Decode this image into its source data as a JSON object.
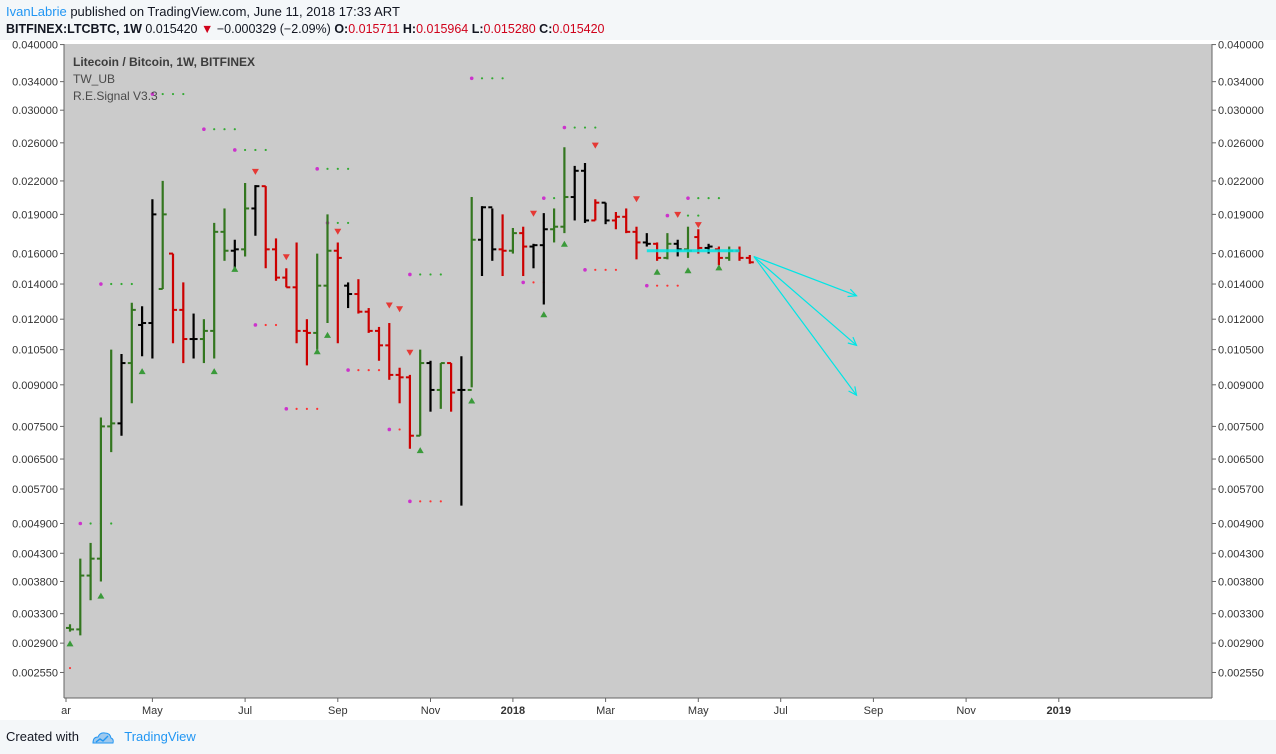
{
  "header": {
    "author": "IvanLabrie",
    "published": " published on TradingView.com, June 11, 2018 17:33 ART",
    "symbol": "BITFINEX:LTCBTC, 1W",
    "last": "0.015420",
    "arrow": "▼",
    "change": "−0.000329 (−2.09%)",
    "o_label": "O:",
    "o": "0.015711",
    "h_label": "H:",
    "h": "0.015964",
    "l_label": "L:",
    "l": "0.015280",
    "c_label": "C:",
    "c": "0.015420"
  },
  "legend": {
    "title": "Litecoin / Bitcoin, 1W, BITFINEX",
    "ind1": "TW_UB",
    "ind2": "R.E.Signal V3.3"
  },
  "footer": {
    "created": "Created with",
    "brand": "TradingView"
  },
  "colors": {
    "up": "#33761f",
    "down": "#cc0000",
    "neutral": "#000000",
    "cyan": "#00e5e5",
    "bg": "#cbcbcb"
  },
  "chart_data": {
    "type": "ohlc",
    "title": "Litecoin / Bitcoin, 1W, BITFINEX",
    "y_scale": "log",
    "ylim": [
      0.00228,
      0.0401
    ],
    "y_ticks": [
      "0.040000",
      "0.034000",
      "0.030000",
      "0.026000",
      "0.022000",
      "0.019000",
      "0.016000",
      "0.014000",
      "0.012000",
      "0.010500",
      "0.009000",
      "0.007500",
      "0.006500",
      "0.005700",
      "0.004900",
      "0.004300",
      "0.003800",
      "0.003300",
      "0.002900",
      "0.002550"
    ],
    "x_ticks": [
      {
        "label": "ar",
        "i": 0
      },
      {
        "label": "May",
        "i": 8
      },
      {
        "label": "Jul",
        "i": 17
      },
      {
        "label": "Sep",
        "i": 26
      },
      {
        "label": "Nov",
        "i": 35
      },
      {
        "label": "2018",
        "i": 43,
        "bold": true
      },
      {
        "label": "Mar",
        "i": 52
      },
      {
        "label": "May",
        "i": 61
      },
      {
        "label": "Jul",
        "i": 69
      },
      {
        "label": "Sep",
        "i": 78
      },
      {
        "label": "Nov",
        "i": 87
      },
      {
        "label": "2019",
        "i": 96,
        "bold": true
      }
    ],
    "bars": [
      {
        "o": 0.0031,
        "h": 0.00315,
        "l": 0.00305,
        "c": 0.00308,
        "k": "u"
      },
      {
        "o": 0.00308,
        "h": 0.0042,
        "l": 0.003,
        "c": 0.0039,
        "k": "u"
      },
      {
        "o": 0.0039,
        "h": 0.0045,
        "l": 0.0035,
        "c": 0.0042,
        "k": "u"
      },
      {
        "o": 0.0042,
        "h": 0.0078,
        "l": 0.0038,
        "c": 0.0075,
        "k": "u"
      },
      {
        "o": 0.0075,
        "h": 0.0105,
        "l": 0.0067,
        "c": 0.0076,
        "k": "u"
      },
      {
        "o": 0.0076,
        "h": 0.0103,
        "l": 0.0072,
        "c": 0.0099,
        "k": "n"
      },
      {
        "o": 0.0099,
        "h": 0.0129,
        "l": 0.0083,
        "c": 0.0125,
        "k": "u"
      },
      {
        "o": 0.0117,
        "h": 0.0127,
        "l": 0.0102,
        "c": 0.0118,
        "k": "n"
      },
      {
        "o": 0.0118,
        "h": 0.0203,
        "l": 0.0101,
        "c": 0.019,
        "k": "n"
      },
      {
        "o": 0.0137,
        "h": 0.022,
        "l": 0.0137,
        "c": 0.019,
        "k": "u"
      },
      {
        "o": 0.016,
        "h": 0.016,
        "l": 0.0108,
        "c": 0.0125,
        "k": "d"
      },
      {
        "o": 0.0125,
        "h": 0.0141,
        "l": 0.0099,
        "c": 0.011,
        "k": "d"
      },
      {
        "o": 0.011,
        "h": 0.0123,
        "l": 0.0101,
        "c": 0.011,
        "k": "n"
      },
      {
        "o": 0.011,
        "h": 0.012,
        "l": 0.0099,
        "c": 0.0114,
        "k": "u"
      },
      {
        "o": 0.0114,
        "h": 0.0183,
        "l": 0.0101,
        "c": 0.0176,
        "k": "u"
      },
      {
        "o": 0.0176,
        "h": 0.0195,
        "l": 0.0155,
        "c": 0.0162,
        "k": "u"
      },
      {
        "o": 0.0162,
        "h": 0.017,
        "l": 0.015,
        "c": 0.0163,
        "k": "n"
      },
      {
        "o": 0.0163,
        "h": 0.0218,
        "l": 0.0158,
        "c": 0.0195,
        "k": "u"
      },
      {
        "o": 0.0195,
        "h": 0.0216,
        "l": 0.0173,
        "c": 0.0215,
        "k": "n"
      },
      {
        "o": 0.0215,
        "h": 0.0215,
        "l": 0.015,
        "c": 0.0163,
        "k": "d"
      },
      {
        "o": 0.0163,
        "h": 0.0171,
        "l": 0.0142,
        "c": 0.0144,
        "k": "d"
      },
      {
        "o": 0.0144,
        "h": 0.015,
        "l": 0.0138,
        "c": 0.0138,
        "k": "d"
      },
      {
        "o": 0.0138,
        "h": 0.0168,
        "l": 0.0108,
        "c": 0.0114,
        "k": "d"
      },
      {
        "o": 0.0114,
        "h": 0.012,
        "l": 0.0098,
        "c": 0.0113,
        "k": "d"
      },
      {
        "o": 0.0113,
        "h": 0.016,
        "l": 0.0105,
        "c": 0.0139,
        "k": "u"
      },
      {
        "o": 0.0139,
        "h": 0.019,
        "l": 0.0118,
        "c": 0.0162,
        "k": "u"
      },
      {
        "o": 0.0162,
        "h": 0.0168,
        "l": 0.0108,
        "c": 0.0157,
        "k": "d"
      },
      {
        "o": 0.0139,
        "h": 0.0141,
        "l": 0.0126,
        "c": 0.0134,
        "k": "n"
      },
      {
        "o": 0.0134,
        "h": 0.0143,
        "l": 0.0123,
        "c": 0.0124,
        "k": "d"
      },
      {
        "o": 0.0124,
        "h": 0.0126,
        "l": 0.0113,
        "c": 0.0114,
        "k": "d"
      },
      {
        "o": 0.0114,
        "h": 0.0116,
        "l": 0.01,
        "c": 0.0107,
        "k": "d"
      },
      {
        "o": 0.0107,
        "h": 0.0118,
        "l": 0.0092,
        "c": 0.0094,
        "k": "d"
      },
      {
        "o": 0.0094,
        "h": 0.0097,
        "l": 0.0083,
        "c": 0.0093,
        "k": "d"
      },
      {
        "o": 0.0093,
        "h": 0.0094,
        "l": 0.0068,
        "c": 0.0072,
        "k": "d"
      },
      {
        "o": 0.0072,
        "h": 0.0105,
        "l": 0.0072,
        "c": 0.0099,
        "k": "u"
      },
      {
        "o": 0.0099,
        "h": 0.01,
        "l": 0.008,
        "c": 0.0088,
        "k": "n"
      },
      {
        "o": 0.0088,
        "h": 0.0099,
        "l": 0.0081,
        "c": 0.0099,
        "k": "u"
      },
      {
        "o": 0.0099,
        "h": 0.0099,
        "l": 0.008,
        "c": 0.0087,
        "k": "d"
      },
      {
        "o": 0.0088,
        "h": 0.0102,
        "l": 0.0053,
        "c": 0.0088,
        "k": "n"
      },
      {
        "o": 0.0088,
        "h": 0.0205,
        "l": 0.0089,
        "c": 0.017,
        "k": "u"
      },
      {
        "o": 0.017,
        "h": 0.0197,
        "l": 0.0145,
        "c": 0.0196,
        "k": "n"
      },
      {
        "o": 0.0196,
        "h": 0.0195,
        "l": 0.0155,
        "c": 0.0163,
        "k": "n"
      },
      {
        "o": 0.0163,
        "h": 0.019,
        "l": 0.0145,
        "c": 0.0162,
        "k": "d"
      },
      {
        "o": 0.0162,
        "h": 0.0179,
        "l": 0.016,
        "c": 0.0175,
        "k": "u"
      },
      {
        "o": 0.0175,
        "h": 0.018,
        "l": 0.0145,
        "c": 0.0165,
        "k": "d"
      },
      {
        "o": 0.0165,
        "h": 0.0167,
        "l": 0.015,
        "c": 0.0166,
        "k": "n"
      },
      {
        "o": 0.0166,
        "h": 0.0191,
        "l": 0.0128,
        "c": 0.0178,
        "k": "n"
      },
      {
        "o": 0.0178,
        "h": 0.0195,
        "l": 0.0168,
        "c": 0.018,
        "k": "u"
      },
      {
        "o": 0.018,
        "h": 0.0255,
        "l": 0.0175,
        "c": 0.0205,
        "k": "u"
      },
      {
        "o": 0.0205,
        "h": 0.0235,
        "l": 0.0185,
        "c": 0.023,
        "k": "n"
      },
      {
        "o": 0.023,
        "h": 0.0238,
        "l": 0.0183,
        "c": 0.0185,
        "k": "n"
      },
      {
        "o": 0.0185,
        "h": 0.0203,
        "l": 0.0185,
        "c": 0.02,
        "k": "d"
      },
      {
        "o": 0.02,
        "h": 0.02,
        "l": 0.0182,
        "c": 0.0185,
        "k": "n"
      },
      {
        "o": 0.0185,
        "h": 0.0192,
        "l": 0.0178,
        "c": 0.0188,
        "k": "d"
      },
      {
        "o": 0.0188,
        "h": 0.0195,
        "l": 0.0175,
        "c": 0.0176,
        "k": "d"
      },
      {
        "o": 0.0176,
        "h": 0.018,
        "l": 0.0156,
        "c": 0.0168,
        "k": "d"
      },
      {
        "o": 0.0168,
        "h": 0.0175,
        "l": 0.0165,
        "c": 0.0167,
        "k": "n"
      },
      {
        "o": 0.0167,
        "h": 0.0168,
        "l": 0.0155,
        "c": 0.0157,
        "k": "d"
      },
      {
        "o": 0.0157,
        "h": 0.0175,
        "l": 0.0156,
        "c": 0.0167,
        "k": "u"
      },
      {
        "o": 0.0167,
        "h": 0.017,
        "l": 0.0158,
        "c": 0.0163,
        "k": "n"
      },
      {
        "o": 0.0163,
        "h": 0.018,
        "l": 0.0157,
        "c": 0.0162,
        "k": "u"
      },
      {
        "o": 0.0172,
        "h": 0.0178,
        "l": 0.016,
        "c": 0.0164,
        "k": "d"
      },
      {
        "o": 0.0164,
        "h": 0.0167,
        "l": 0.016,
        "c": 0.0165,
        "k": "n"
      },
      {
        "o": 0.0163,
        "h": 0.0165,
        "l": 0.0152,
        "c": 0.0157,
        "k": "d"
      },
      {
        "o": 0.0157,
        "h": 0.0165,
        "l": 0.0155,
        "c": 0.0162,
        "k": "u"
      },
      {
        "o": 0.0162,
        "h": 0.0165,
        "l": 0.0155,
        "c": 0.0157,
        "k": "d"
      },
      {
        "o": 0.0157,
        "h": 0.0159,
        "l": 0.0153,
        "c": 0.0154,
        "k": "d"
      }
    ],
    "stops": [
      {
        "i": 0,
        "v": 0.0026,
        "c": "r"
      },
      {
        "i": 1,
        "v": 0.0049,
        "c": "m"
      },
      {
        "i": 2,
        "v": 0.0049,
        "c": "g"
      },
      {
        "i": 3,
        "v": 0.0049,
        "c": "g"
      },
      {
        "i": 4,
        "v": 0.0049,
        "c": "g"
      },
      {
        "i": 3,
        "v": 0.014,
        "c": "m"
      },
      {
        "i": 4,
        "v": 0.014,
        "c": "g"
      },
      {
        "i": 5,
        "v": 0.014,
        "c": "g"
      },
      {
        "i": 6,
        "v": 0.014,
        "c": "g"
      },
      {
        "i": 8,
        "v": 0.0322,
        "c": "m"
      },
      {
        "i": 9,
        "v": 0.0322,
        "c": "g"
      },
      {
        "i": 10,
        "v": 0.0322,
        "c": "g"
      },
      {
        "i": 11,
        "v": 0.0322,
        "c": "g"
      },
      {
        "i": 13,
        "v": 0.0276,
        "c": "m"
      },
      {
        "i": 14,
        "v": 0.0276,
        "c": "g"
      },
      {
        "i": 15,
        "v": 0.0276,
        "c": "g"
      },
      {
        "i": 16,
        "v": 0.0276,
        "c": "g"
      },
      {
        "i": 16,
        "v": 0.0252,
        "c": "m"
      },
      {
        "i": 17,
        "v": 0.0252,
        "c": "g"
      },
      {
        "i": 18,
        "v": 0.0252,
        "c": "g"
      },
      {
        "i": 19,
        "v": 0.0252,
        "c": "g"
      },
      {
        "i": 18,
        "v": 0.0117,
        "c": "m"
      },
      {
        "i": 19,
        "v": 0.0117,
        "c": "r"
      },
      {
        "i": 20,
        "v": 0.0117,
        "c": "r"
      },
      {
        "i": 21,
        "v": 0.0081,
        "c": "m"
      },
      {
        "i": 22,
        "v": 0.0081,
        "c": "r"
      },
      {
        "i": 23,
        "v": 0.0081,
        "c": "r"
      },
      {
        "i": 24,
        "v": 0.0081,
        "c": "r"
      },
      {
        "i": 24,
        "v": 0.0232,
        "c": "m"
      },
      {
        "i": 25,
        "v": 0.0232,
        "c": "g"
      },
      {
        "i": 26,
        "v": 0.0232,
        "c": "g"
      },
      {
        "i": 27,
        "v": 0.0232,
        "c": "g"
      },
      {
        "i": 25,
        "v": 0.0183,
        "c": "m"
      },
      {
        "i": 26,
        "v": 0.0183,
        "c": "g"
      },
      {
        "i": 27,
        "v": 0.0183,
        "c": "g"
      },
      {
        "i": 27,
        "v": 0.0096,
        "c": "m"
      },
      {
        "i": 28,
        "v": 0.0096,
        "c": "r"
      },
      {
        "i": 29,
        "v": 0.0096,
        "c": "r"
      },
      {
        "i": 30,
        "v": 0.0096,
        "c": "r"
      },
      {
        "i": 31,
        "v": 0.0074,
        "c": "m"
      },
      {
        "i": 32,
        "v": 0.0074,
        "c": "r"
      },
      {
        "i": 33,
        "v": 0.0054,
        "c": "m"
      },
      {
        "i": 34,
        "v": 0.0054,
        "c": "r"
      },
      {
        "i": 35,
        "v": 0.0054,
        "c": "r"
      },
      {
        "i": 36,
        "v": 0.0054,
        "c": "r"
      },
      {
        "i": 33,
        "v": 0.0146,
        "c": "m"
      },
      {
        "i": 34,
        "v": 0.0146,
        "c": "g"
      },
      {
        "i": 35,
        "v": 0.0146,
        "c": "g"
      },
      {
        "i": 36,
        "v": 0.0146,
        "c": "g"
      },
      {
        "i": 39,
        "v": 0.0345,
        "c": "m"
      },
      {
        "i": 40,
        "v": 0.0345,
        "c": "g"
      },
      {
        "i": 41,
        "v": 0.0345,
        "c": "g"
      },
      {
        "i": 42,
        "v": 0.0345,
        "c": "g"
      },
      {
        "i": 44,
        "v": 0.0141,
        "c": "m"
      },
      {
        "i": 45,
        "v": 0.0141,
        "c": "r"
      },
      {
        "i": 46,
        "v": 0.0141,
        "c": "r"
      },
      {
        "i": 46,
        "v": 0.0204,
        "c": "m"
      },
      {
        "i": 47,
        "v": 0.0204,
        "c": "g"
      },
      {
        "i": 48,
        "v": 0.0278,
        "c": "m"
      },
      {
        "i": 49,
        "v": 0.0278,
        "c": "g"
      },
      {
        "i": 50,
        "v": 0.0278,
        "c": "g"
      },
      {
        "i": 51,
        "v": 0.0278,
        "c": "g"
      },
      {
        "i": 50,
        "v": 0.0149,
        "c": "m"
      },
      {
        "i": 51,
        "v": 0.0149,
        "c": "r"
      },
      {
        "i": 52,
        "v": 0.0149,
        "c": "r"
      },
      {
        "i": 53,
        "v": 0.0149,
        "c": "r"
      },
      {
        "i": 56,
        "v": 0.0139,
        "c": "m"
      },
      {
        "i": 57,
        "v": 0.0139,
        "c": "r"
      },
      {
        "i": 58,
        "v": 0.0139,
        "c": "r"
      },
      {
        "i": 59,
        "v": 0.0139,
        "c": "r"
      },
      {
        "i": 58,
        "v": 0.0189,
        "c": "m"
      },
      {
        "i": 59,
        "v": 0.0189,
        "c": "g"
      },
      {
        "i": 60,
        "v": 0.0189,
        "c": "g"
      },
      {
        "i": 61,
        "v": 0.0189,
        "c": "g"
      },
      {
        "i": 60,
        "v": 0.0204,
        "c": "m"
      },
      {
        "i": 61,
        "v": 0.0204,
        "c": "g"
      },
      {
        "i": 62,
        "v": 0.0204,
        "c": "g"
      },
      {
        "i": 63,
        "v": 0.0204,
        "c": "g"
      }
    ],
    "signals_up": [
      0,
      3,
      7,
      15,
      25,
      30,
      31,
      39,
      47,
      52,
      61,
      63
    ],
    "signals_down": [
      17,
      22,
      26,
      30,
      33,
      45,
      50,
      55,
      60,
      65
    ],
    "signal_up_markers": [
      {
        "i": 0,
        "v": 0.003
      },
      {
        "i": 3,
        "v": 0.0037
      },
      {
        "i": 7,
        "v": 0.0099
      },
      {
        "i": 14,
        "v": 0.0099
      },
      {
        "i": 16,
        "v": 0.0155
      },
      {
        "i": 24,
        "v": 0.0108
      },
      {
        "i": 25,
        "v": 0.0116
      },
      {
        "i": 34,
        "v": 0.007
      },
      {
        "i": 39,
        "v": 0.0087
      },
      {
        "i": 46,
        "v": 0.0127
      },
      {
        "i": 48,
        "v": 0.0173
      },
      {
        "i": 57,
        "v": 0.0153
      },
      {
        "i": 60,
        "v": 0.0154
      },
      {
        "i": 63,
        "v": 0.0156
      }
    ],
    "signal_down_markers": [
      {
        "i": 18,
        "v": 0.0221
      },
      {
        "i": 21,
        "v": 0.0152
      },
      {
        "i": 26,
        "v": 0.017
      },
      {
        "i": 31,
        "v": 0.0123
      },
      {
        "i": 32,
        "v": 0.0121
      },
      {
        "i": 33,
        "v": 0.01
      },
      {
        "i": 45,
        "v": 0.0184
      },
      {
        "i": 51,
        "v": 0.0248
      },
      {
        "i": 55,
        "v": 0.0196
      },
      {
        "i": 59,
        "v": 0.0183
      },
      {
        "i": 61,
        "v": 0.0175
      }
    ],
    "level_line": {
      "from": 56,
      "to": 65,
      "v": 0.0162
    },
    "forecast_arrows": [
      {
        "from_i": 66,
        "from_v": 0.0158,
        "to_i": 75,
        "to_v": 0.0133
      },
      {
        "from_i": 66,
        "from_v": 0.0158,
        "to_i": 75,
        "to_v": 0.0107
      },
      {
        "from_i": 66,
        "from_v": 0.0158,
        "to_i": 75,
        "to_v": 0.0086
      }
    ]
  }
}
